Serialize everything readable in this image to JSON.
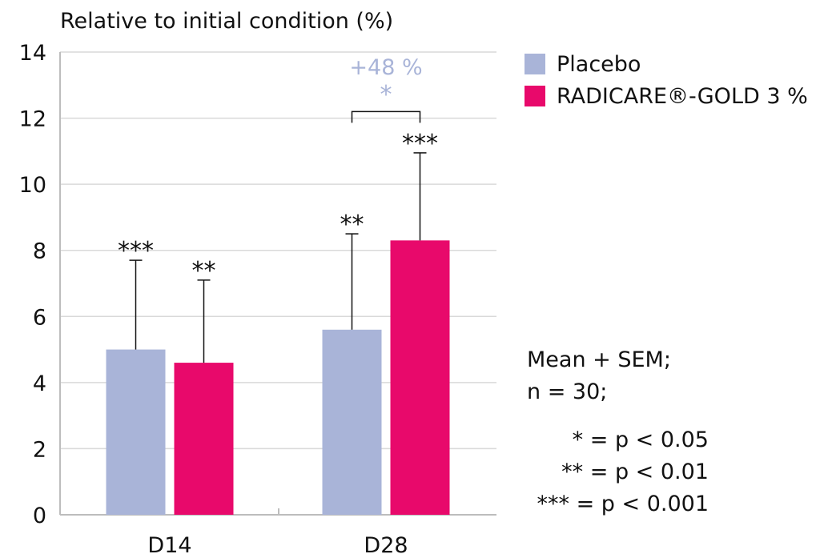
{
  "chart_data": {
    "type": "bar",
    "ylabel": "Relative to initial condition (%)",
    "ylim": [
      0,
      14
    ],
    "yticks": [
      0,
      2,
      4,
      6,
      8,
      10,
      12,
      14
    ],
    "grid": true,
    "categories": [
      "D14",
      "D28"
    ],
    "series": [
      {
        "name": "Placebo",
        "color": "#a9b4d8",
        "values": [
          5.0,
          5.6
        ],
        "errors": [
          2.7,
          2.9
        ],
        "significance": [
          "***",
          "**"
        ]
      },
      {
        "name": "RADICARE®-GOLD 3%",
        "color": "#e8096b",
        "values": [
          4.6,
          8.3
        ],
        "errors": [
          2.5,
          2.65
        ],
        "significance": [
          "**",
          "***"
        ]
      }
    ],
    "comparison": {
      "category": "D28",
      "label": "+48 %",
      "significance": "*",
      "color": "#a9b4d8"
    },
    "legend_position": "top-right"
  },
  "legend": {
    "placebo": "Placebo",
    "radicare": "RADICARE®-GOLD 3 %"
  },
  "notes": {
    "line1": "Mean + SEM;",
    "line2": "n = 30;"
  },
  "significance_key": {
    "one": "* = p < 0.05",
    "two": "** = p < 0.01",
    "three": "*** = p < 0.001"
  }
}
